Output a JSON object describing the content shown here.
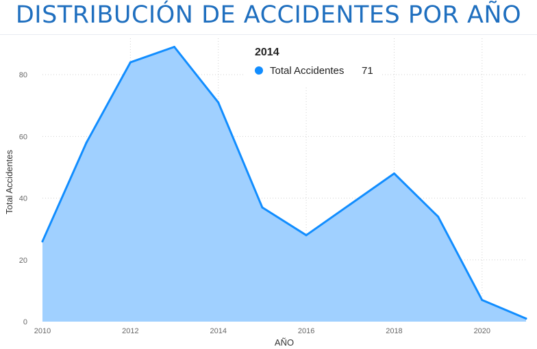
{
  "header": {
    "title": "DISTRIBUCIÓN DE ACCIDENTES POR AÑO"
  },
  "chart_data": {
    "type": "area",
    "xlabel": "AÑO",
    "ylabel": "Total Accidentes",
    "xlim": [
      2010,
      2021
    ],
    "ylim": [
      0,
      90
    ],
    "x_ticks": [
      2010,
      2012,
      2014,
      2016,
      2018,
      2020
    ],
    "y_ticks": [
      0,
      20,
      40,
      60,
      80
    ],
    "grid": true,
    "series": [
      {
        "name": "Total Accidentes",
        "color": "#118dff",
        "fill": "#a0d0ff",
        "x": [
          2010,
          2011,
          2012,
          2013,
          2014,
          2015,
          2016,
          2017,
          2018,
          2019,
          2020,
          2021
        ],
        "values": [
          26,
          58,
          84,
          89,
          71,
          37,
          28,
          38,
          48,
          34,
          7,
          1
        ]
      }
    ],
    "tooltip": {
      "year": "2014",
      "series": "Total Accidentes",
      "value": "71"
    }
  }
}
